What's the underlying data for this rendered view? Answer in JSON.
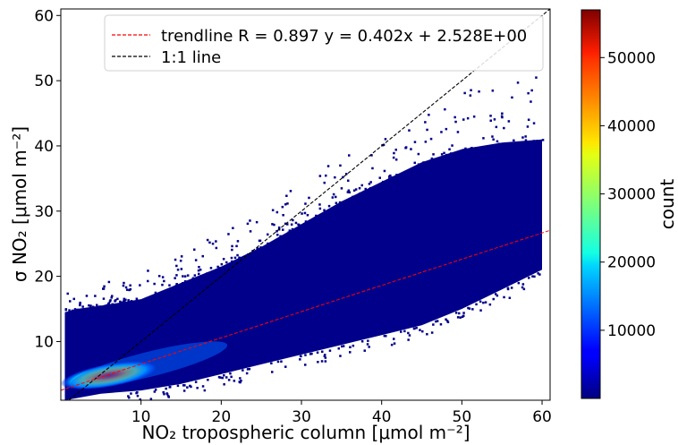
{
  "chart_data": {
    "type": "heatmap",
    "xlabel": "NO₂ tropospheric column [μmol m⁻²]",
    "ylabel": "σ NO₂ [μmol m⁻²]",
    "colorbar_label": "count",
    "xlim": [
      0,
      61
    ],
    "ylim": [
      1,
      61
    ],
    "xticks": [
      10,
      20,
      30,
      40,
      50,
      60
    ],
    "yticks": [
      10,
      20,
      30,
      40,
      50,
      60
    ],
    "colorbar_ticks": [
      10000,
      20000,
      30000,
      40000,
      50000
    ],
    "colorbar_range": [
      0,
      57000
    ],
    "colormap": "jet",
    "legend_position": "top-right",
    "series": [
      {
        "name": "trendline R = 0.897 y = 0.402x + 2.528E+00",
        "kind": "line",
        "style": "dashed",
        "color": "#ff0000",
        "slope": 0.402,
        "intercept": 2.528
      },
      {
        "name": "1:1 line",
        "kind": "line",
        "style": "dashed",
        "color": "#000000",
        "slope": 1,
        "intercept": 0
      }
    ],
    "density": {
      "upper_bound": [
        [
          0.5,
          14.5
        ],
        [
          2,
          15
        ],
        [
          5,
          15.5
        ],
        [
          10,
          16.5
        ],
        [
          15,
          19
        ],
        [
          20,
          21.5
        ],
        [
          25,
          24.5
        ],
        [
          30,
          28
        ],
        [
          35,
          31.5
        ],
        [
          40,
          34.5
        ],
        [
          45,
          37.5
        ],
        [
          50,
          39.5
        ],
        [
          55,
          40.5
        ],
        [
          60,
          41
        ]
      ],
      "lower_bound": [
        [
          0.5,
          1
        ],
        [
          5,
          2
        ],
        [
          10,
          2.5
        ],
        [
          15,
          3.5
        ],
        [
          20,
          5
        ],
        [
          25,
          6.5
        ],
        [
          30,
          8
        ],
        [
          35,
          9.5
        ],
        [
          40,
          11
        ],
        [
          45,
          12.5
        ],
        [
          50,
          15
        ],
        [
          55,
          18
        ],
        [
          60,
          21
        ]
      ],
      "hotspot": {
        "x": 6,
        "y": 4.8,
        "peak_count": 57000
      },
      "tail_label": "scattered outliers up to ~48"
    }
  }
}
